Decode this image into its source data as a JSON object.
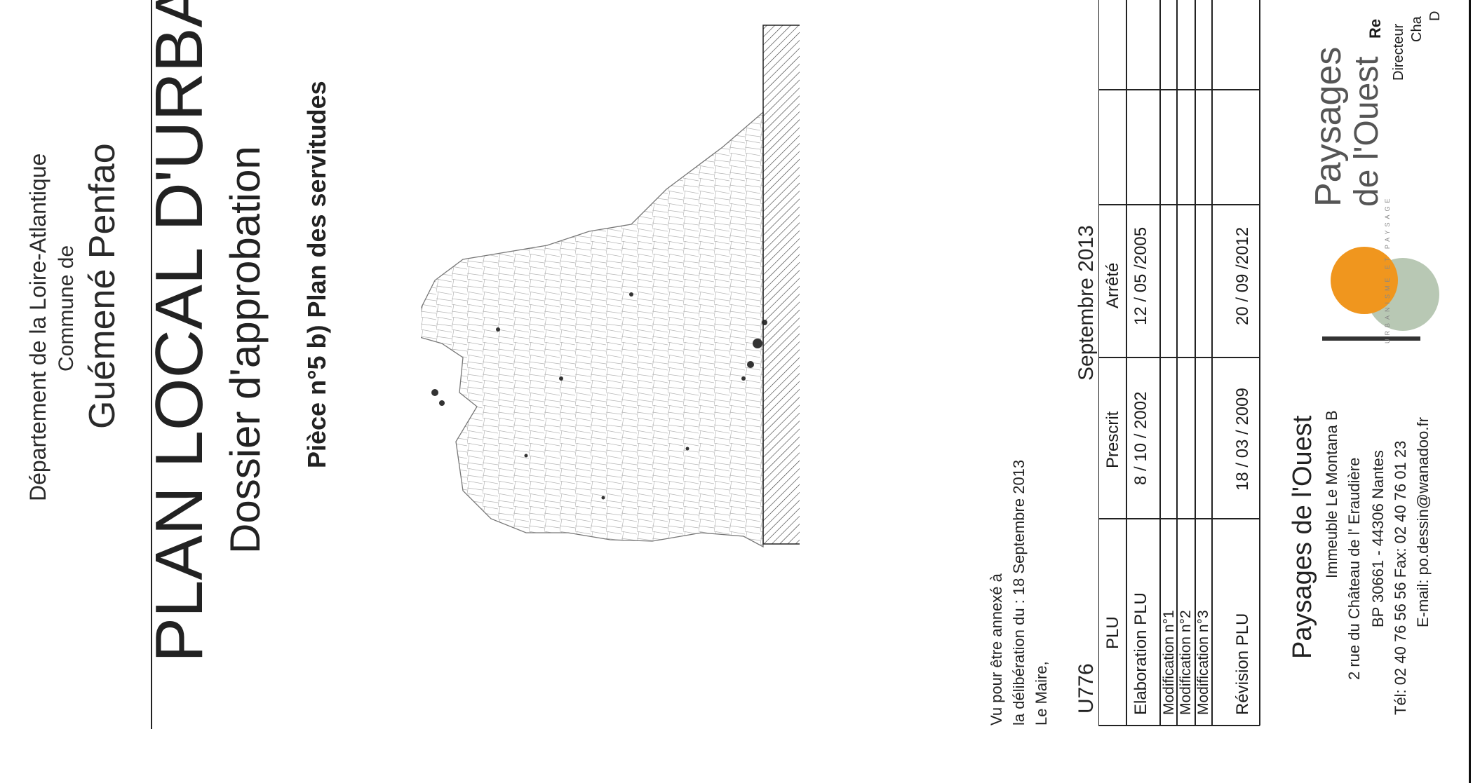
{
  "header": {
    "department": "Département de la Loire-Atlantique",
    "commune_label": "Commune de",
    "commune_name": "Guémené Penfao"
  },
  "title": {
    "main": "PLAN LOCAL D'URBANIS",
    "subtitle": "Dossier d'approbation",
    "piece": "Pièce n°5 b) Plan des servitudes"
  },
  "annex": {
    "line1": "Vu pour être annexé à",
    "line2": "la délibération du : 18 Septembre 2013",
    "line3": "Le Maire,"
  },
  "project_code": "U776",
  "date_label": "Septembre 2013",
  "table": {
    "headers": [
      "PLU",
      "Prescrit",
      "Arrêté",
      ""
    ],
    "rows": [
      [
        "Elaboration PLU",
        "8 / 10 / 2002",
        "12 / 05 /2005",
        ""
      ],
      [
        "Modification n°1",
        "",
        "",
        ""
      ],
      [
        "Modification n°2",
        "",
        "",
        ""
      ],
      [
        "Modification n°3",
        "",
        "",
        ""
      ],
      [
        "Révision PLU",
        "18 / 03 / 2009",
        "20 / 09 /2012",
        ""
      ]
    ]
  },
  "company": {
    "name": "Paysages de l'Ouest",
    "address1": "Immeuble Le Montana B",
    "address2": "2 rue du Château de l' Eraudière",
    "address3": "BP 30661 - 44306 Nantes",
    "phone": "Tél: 02 40 76 56 56   Fax: 02 40 76 01 23",
    "email": "E-mail: po.dessin@wanadoo.fr"
  },
  "logo": {
    "word1": "Paysages",
    "word2": "de l'Ouest",
    "tagline": "URBANISME ET PAYSAGE",
    "orange": "#f0961e",
    "sage": "#b8c8b4"
  },
  "right_partial": {
    "line1": "Re",
    "line2": "Directeur",
    "line3": "Cha",
    "line4": "D"
  }
}
